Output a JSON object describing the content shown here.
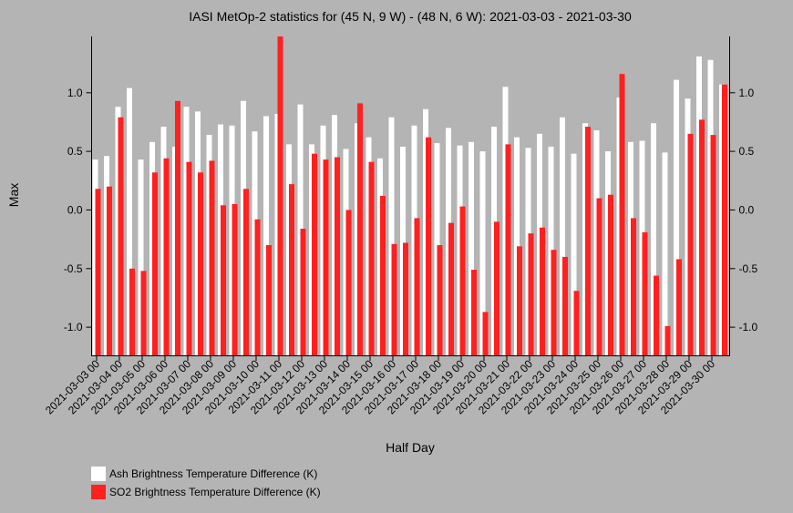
{
  "chart_data": {
    "type": "bar",
    "title": "IASI MetOp-2 statistics for (45 N, 9 W) - (48 N, 6 W): 2021-03-03 - 2021-03-30",
    "xlabel": "Half Day",
    "ylabel": "Max",
    "ylim": [
      -1.24,
      1.48
    ],
    "yticks": [
      "-1.0",
      "-0.5",
      "0.0",
      "0.5",
      "1.0"
    ],
    "ytick_values": [
      -1.0,
      -0.5,
      0.0,
      0.5,
      1.0
    ],
    "x_tick_labels": [
      "2021-03-03 00",
      "2021-03-04 00",
      "2021-03-05 00",
      "2021-03-06 00",
      "2021-03-07 00",
      "2021-03-08 00",
      "2021-03-09 00",
      "2021-03-10 00",
      "2021-03-11 00",
      "2021-03-12 00",
      "2021-03-13 00",
      "2021-03-14 00",
      "2021-03-15 00",
      "2021-03-16 00",
      "2021-03-17 00",
      "2021-03-18 00",
      "2021-03-19 00",
      "2021-03-20 00",
      "2021-03-21 00",
      "2021-03-22 00",
      "2021-03-23 00",
      "2021-03-24 00",
      "2021-03-25 00",
      "2021-03-26 00",
      "2021-03-27 00",
      "2021-03-28 00",
      "2021-03-29 00",
      "2021-03-30 00"
    ],
    "x_start": "2021-03-03 00:00",
    "x_step_hours": 12,
    "grid": false,
    "legend_position": "bottom-left",
    "series": [
      {
        "name": "Ash Brightness Temperature Difference (K)",
        "color": "#ffffff",
        "values": [
          0.43,
          0.46,
          0.88,
          1.04,
          0.43,
          0.58,
          0.71,
          0.54,
          0.88,
          0.84,
          0.64,
          0.73,
          0.72,
          0.93,
          0.67,
          0.8,
          0.82,
          0.56,
          0.9,
          0.56,
          0.72,
          0.81,
          0.52,
          0.74,
          0.62,
          0.44,
          0.79,
          0.54,
          0.72,
          0.86,
          0.57,
          0.7,
          0.55,
          0.58,
          0.5,
          0.71,
          1.05,
          0.62,
          0.53,
          0.65,
          0.54,
          0.79,
          0.48,
          0.74,
          0.68,
          0.5,
          0.96,
          0.58,
          0.59,
          0.74,
          0.49,
          1.11,
          0.95,
          1.31,
          1.28,
          1.07
        ]
      },
      {
        "name": "SO2 Brightness Temperature Difference (K)",
        "color": "#ff2020",
        "values": [
          0.18,
          0.2,
          0.79,
          -0.5,
          -0.52,
          0.32,
          0.44,
          0.93,
          0.41,
          0.32,
          0.42,
          0.04,
          0.05,
          0.18,
          -0.08,
          -0.3,
          1.49,
          0.22,
          -0.16,
          0.48,
          0.43,
          0.45,
          0.0,
          0.91,
          0.41,
          0.12,
          -0.29,
          -0.28,
          -0.07,
          0.62,
          -0.3,
          -0.11,
          0.03,
          -0.51,
          -0.87,
          -0.1,
          0.56,
          -0.31,
          -0.2,
          -0.15,
          -0.34,
          -0.4,
          -0.69,
          0.71,
          0.1,
          0.13,
          1.16,
          -0.07,
          -0.19,
          -0.56,
          -0.99,
          -0.42,
          0.65,
          0.77,
          0.64,
          1.07
        ]
      }
    ]
  }
}
